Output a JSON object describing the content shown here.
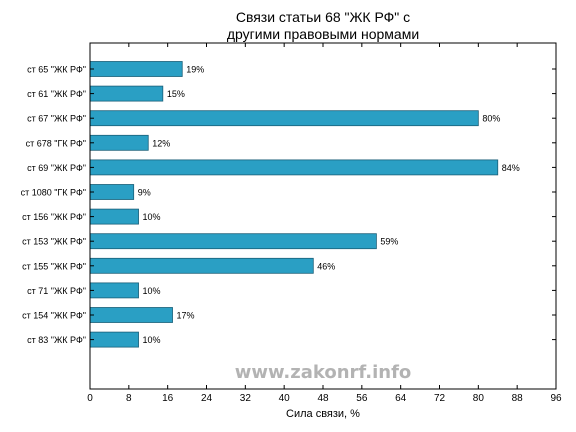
{
  "chart_data": {
    "type": "bar",
    "orientation": "horizontal",
    "title": "Связи статьи 68 \"ЖК РФ\" с\nдругими правовыми нормами",
    "title_lines": [
      "Связи статьи 68 \"ЖК РФ\" с",
      "другими правовыми нормами"
    ],
    "xlabel": "Сила связи, %",
    "ylabel": "",
    "xlim": [
      0,
      96
    ],
    "xticks": [
      0,
      8,
      16,
      24,
      32,
      40,
      48,
      56,
      64,
      72,
      80,
      88,
      96
    ],
    "categories": [
      "ст 65 \"ЖК РФ\"",
      "ст 61 \"ЖК РФ\"",
      "ст 67 \"ЖК РФ\"",
      "ст 678 \"ГК РФ\"",
      "ст 69 \"ЖК РФ\"",
      "ст 1080 \"ГК РФ\"",
      "ст 156 \"ЖК РФ\"",
      "ст 153 \"ЖК РФ\"",
      "ст 155 \"ЖК РФ\"",
      "ст 71 \"ЖК РФ\"",
      "ст 154 \"ЖК РФ\"",
      "ст 83 \"ЖК РФ\""
    ],
    "values": [
      19,
      15,
      80,
      12,
      84,
      9,
      10,
      59,
      46,
      10,
      17,
      10
    ],
    "value_labels": [
      "19%",
      "15%",
      "80%",
      "12%",
      "84%",
      "9%",
      "10%",
      "59%",
      "46%",
      "10%",
      "17%",
      "10%"
    ],
    "bar_color": "#2a9fc4",
    "bar_edge_color": "#1a5f78",
    "grid": false,
    "watermark": "www.zakonrf.info"
  }
}
